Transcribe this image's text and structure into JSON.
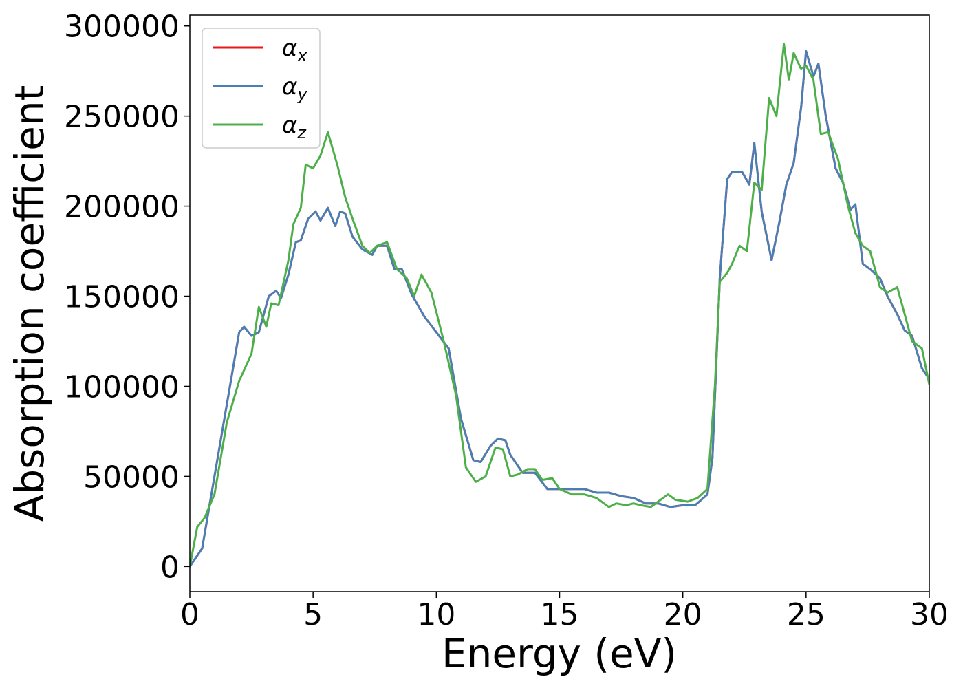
{
  "chart_data": {
    "type": "line",
    "xlabel": "Energy (eV)",
    "ylabel": "Absorption coefficient",
    "xlim": [
      0,
      30
    ],
    "ylim": [
      -14000,
      306000
    ],
    "xticks": [
      0,
      5,
      10,
      15,
      20,
      25,
      30
    ],
    "yticks": [
      0,
      50000,
      100000,
      150000,
      200000,
      250000,
      300000
    ],
    "xtick_labels": [
      "0",
      "5",
      "10",
      "15",
      "20",
      "25",
      "30"
    ],
    "ytick_labels": [
      "0",
      "50000",
      "100000",
      "150000",
      "200000",
      "250000",
      "300000"
    ],
    "grid": false,
    "legend_position": "top-left",
    "series": [
      {
        "name": "αx",
        "legend_base": "α",
        "legend_sub": "x",
        "color": "#e41a1c",
        "x": [
          0,
          0.5,
          1,
          1.5,
          2,
          2.2,
          2.5,
          2.8,
          3.2,
          3.5,
          3.7,
          4,
          4.3,
          4.5,
          4.8,
          5.1,
          5.3,
          5.6,
          5.9,
          6.1,
          6.3,
          6.6,
          7,
          7.4,
          7.6,
          8,
          8.3,
          8.6,
          9,
          9.5,
          10,
          10.5,
          11,
          11.5,
          11.8,
          12.2,
          12.5,
          12.8,
          13,
          13.5,
          14,
          14.5,
          15,
          15.5,
          16,
          16.5,
          17,
          17.5,
          18,
          18.5,
          19,
          19.5,
          20,
          20.5,
          21,
          21.2,
          21.5,
          21.8,
          22,
          22.4,
          22.7,
          22.9,
          23.2,
          23.6,
          23.9,
          24.2,
          24.5,
          24.8,
          25,
          25.3,
          25.5,
          25.8,
          26.2,
          26.5,
          26.8,
          27,
          27.3,
          27.6,
          28,
          28.3,
          28.7,
          29,
          29.3,
          29.7,
          30
        ],
        "y": [
          0,
          10000,
          50000,
          90000,
          130000,
          133000,
          128000,
          130000,
          150000,
          153000,
          149000,
          162000,
          180000,
          181000,
          193000,
          197000,
          192000,
          199000,
          189000,
          197000,
          196000,
          183000,
          176000,
          173000,
          178000,
          178000,
          165000,
          165000,
          151000,
          139000,
          130000,
          121000,
          82000,
          59000,
          58000,
          67000,
          71000,
          70000,
          62000,
          52000,
          52000,
          43000,
          43000,
          43000,
          43000,
          41000,
          41000,
          39000,
          38000,
          35000,
          35000,
          33000,
          34000,
          34000,
          40000,
          60000,
          160000,
          215000,
          219000,
          219000,
          212000,
          235000,
          197000,
          170000,
          190000,
          212000,
          224000,
          255000,
          286000,
          272000,
          279000,
          250000,
          221000,
          213000,
          198000,
          201000,
          168000,
          165000,
          160000,
          150000,
          140000,
          131000,
          128000,
          110000,
          104000
        ]
      },
      {
        "name": "αy",
        "legend_base": "α",
        "legend_sub": "y",
        "color": "#4a7fb5",
        "x": [
          0,
          0.5,
          1,
          1.5,
          2,
          2.2,
          2.5,
          2.8,
          3.2,
          3.5,
          3.7,
          4,
          4.3,
          4.5,
          4.8,
          5.1,
          5.3,
          5.6,
          5.9,
          6.1,
          6.3,
          6.6,
          7,
          7.4,
          7.6,
          8,
          8.3,
          8.6,
          9,
          9.5,
          10,
          10.5,
          11,
          11.5,
          11.8,
          12.2,
          12.5,
          12.8,
          13,
          13.5,
          14,
          14.5,
          15,
          15.5,
          16,
          16.5,
          17,
          17.5,
          18,
          18.5,
          19,
          19.5,
          20,
          20.5,
          21,
          21.2,
          21.5,
          21.8,
          22,
          22.4,
          22.7,
          22.9,
          23.2,
          23.6,
          23.9,
          24.2,
          24.5,
          24.8,
          25,
          25.3,
          25.5,
          25.8,
          26.2,
          26.5,
          26.8,
          27,
          27.3,
          27.6,
          28,
          28.3,
          28.7,
          29,
          29.3,
          29.7,
          30
        ],
        "y": [
          0,
          10000,
          50000,
          90000,
          130000,
          133000,
          128000,
          130000,
          150000,
          153000,
          149000,
          162000,
          180000,
          181000,
          193000,
          197000,
          192000,
          199000,
          189000,
          197000,
          196000,
          183000,
          176000,
          173000,
          178000,
          178000,
          165000,
          165000,
          151000,
          139000,
          130000,
          121000,
          82000,
          59000,
          58000,
          67000,
          71000,
          70000,
          62000,
          52000,
          52000,
          43000,
          43000,
          43000,
          43000,
          41000,
          41000,
          39000,
          38000,
          35000,
          35000,
          33000,
          34000,
          34000,
          40000,
          60000,
          160000,
          215000,
          219000,
          219000,
          212000,
          235000,
          197000,
          170000,
          190000,
          212000,
          224000,
          255000,
          286000,
          272000,
          279000,
          250000,
          221000,
          213000,
          198000,
          201000,
          168000,
          165000,
          160000,
          150000,
          140000,
          131000,
          128000,
          110000,
          104000
        ]
      },
      {
        "name": "αz",
        "legend_base": "α",
        "legend_sub": "z",
        "color": "#4daf4a",
        "x": [
          0,
          0.3,
          0.6,
          1,
          1.5,
          2,
          2.5,
          2.8,
          3.1,
          3.3,
          3.6,
          4,
          4.2,
          4.5,
          4.7,
          5,
          5.3,
          5.6,
          6,
          6.3,
          6.6,
          7,
          7.3,
          7.6,
          8,
          8.4,
          8.8,
          9.1,
          9.4,
          9.8,
          10.3,
          10.8,
          11.2,
          11.6,
          12,
          12.4,
          12.7,
          13,
          13.3,
          13.7,
          14,
          14.3,
          14.7,
          15,
          15.5,
          16,
          16.5,
          17,
          17.3,
          17.7,
          18,
          18.3,
          18.7,
          19,
          19.4,
          19.7,
          20.2,
          20.6,
          21,
          21.3,
          21.5,
          21.8,
          22,
          22.3,
          22.6,
          22.9,
          23.2,
          23.5,
          23.8,
          24.1,
          24.3,
          24.5,
          24.8,
          25,
          25.3,
          25.6,
          25.9,
          26.3,
          26.7,
          27,
          27.3,
          27.6,
          28,
          28.3,
          28.7,
          29,
          29.3,
          29.7,
          30
        ],
        "y": [
          0,
          22000,
          27000,
          40000,
          80000,
          103000,
          118000,
          144000,
          133000,
          146000,
          145000,
          170000,
          190000,
          199000,
          223000,
          221000,
          228000,
          241000,
          222000,
          205000,
          193000,
          178000,
          174000,
          178000,
          180000,
          165000,
          160000,
          150000,
          162000,
          152000,
          125000,
          95000,
          55000,
          47000,
          50000,
          66000,
          65000,
          50000,
          51000,
          54000,
          54000,
          48000,
          49000,
          43000,
          40000,
          40000,
          38000,
          33000,
          35000,
          34000,
          35000,
          34000,
          33000,
          36000,
          40000,
          37000,
          36000,
          38000,
          43000,
          100000,
          158000,
          163000,
          168000,
          178000,
          175000,
          213000,
          209000,
          260000,
          250000,
          290000,
          270000,
          285000,
          276000,
          278000,
          270000,
          240000,
          241000,
          226000,
          200000,
          185000,
          178000,
          175000,
          155000,
          152000,
          155000,
          140000,
          125000,
          121000,
          101000
        ]
      }
    ]
  }
}
